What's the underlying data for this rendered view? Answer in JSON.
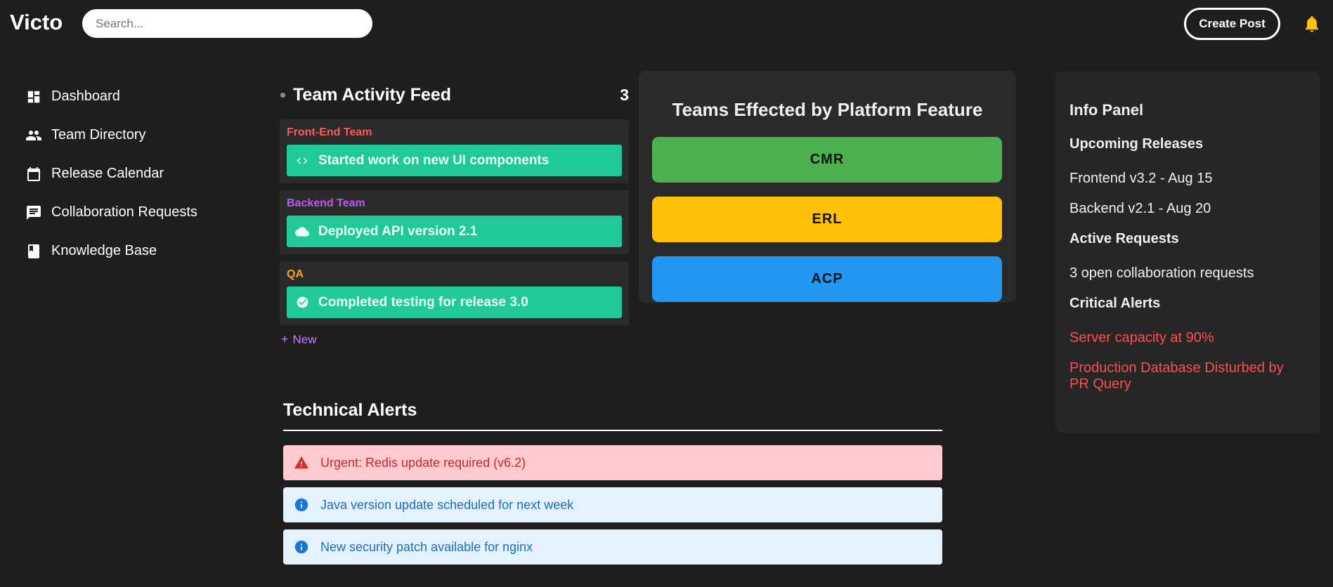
{
  "header": {
    "logo": "Victo",
    "search_placeholder": "Search...",
    "create_post_label": "Create Post"
  },
  "sidebar": {
    "items": [
      {
        "label": "Dashboard",
        "icon": "dashboard-icon"
      },
      {
        "label": "Team Directory",
        "icon": "people-icon"
      },
      {
        "label": "Release Calendar",
        "icon": "calendar-icon"
      },
      {
        "label": "Collaboration Requests",
        "icon": "chat-icon"
      },
      {
        "label": "Knowledge Base",
        "icon": "book-icon"
      }
    ]
  },
  "feed": {
    "title": "Team Activity Feed",
    "count": "3",
    "cards": [
      {
        "team": "Front-End Team",
        "team_color": "#ff5a5a",
        "activity": "Started work on new UI components",
        "icon": "code-icon"
      },
      {
        "team": "Backend Team",
        "team_color": "#c455f5",
        "activity": "Deployed API version 2.1",
        "icon": "cloud-icon"
      },
      {
        "team": "QA",
        "team_color": "#ff9f1a",
        "activity": "Completed testing for release 3.0",
        "icon": "check-circle-icon"
      }
    ],
    "new_label": "New"
  },
  "teams_effected": {
    "title": "Teams Effected by Platform Feature",
    "teams": [
      {
        "label": "CMR",
        "color": "#4caf50"
      },
      {
        "label": "ERL",
        "color": "#ffc107"
      },
      {
        "label": "ACP",
        "color": "#2196f3"
      }
    ]
  },
  "technical_alerts": {
    "title": "Technical Alerts",
    "items": [
      {
        "type": "urgent",
        "text": "Urgent: Redis update required (v6.2)",
        "icon": "warning-icon"
      },
      {
        "type": "info",
        "text": "Java version update scheduled for next week",
        "icon": "info-icon"
      },
      {
        "type": "info",
        "text": "New security patch available for nginx",
        "icon": "info-icon"
      }
    ]
  },
  "info_panel": {
    "title": "Info Panel",
    "upcoming_heading": "Upcoming Releases",
    "releases": [
      "Frontend v3.2 - Aug 15",
      "Backend v2.1 - Aug 20"
    ],
    "active_heading": "Active Requests",
    "active_text": "3 open collaboration requests",
    "critical_heading": "Critical Alerts",
    "critical_alerts": [
      "Server capacity at 90%",
      "Production Database Disturbed by PR Query"
    ]
  },
  "colors": {
    "background": "#1e1e1e",
    "activity_green": "#20c997",
    "critical_red": "#ff4d4d",
    "new_purple": "#c77dff",
    "bell_yellow": "#ffc107"
  }
}
